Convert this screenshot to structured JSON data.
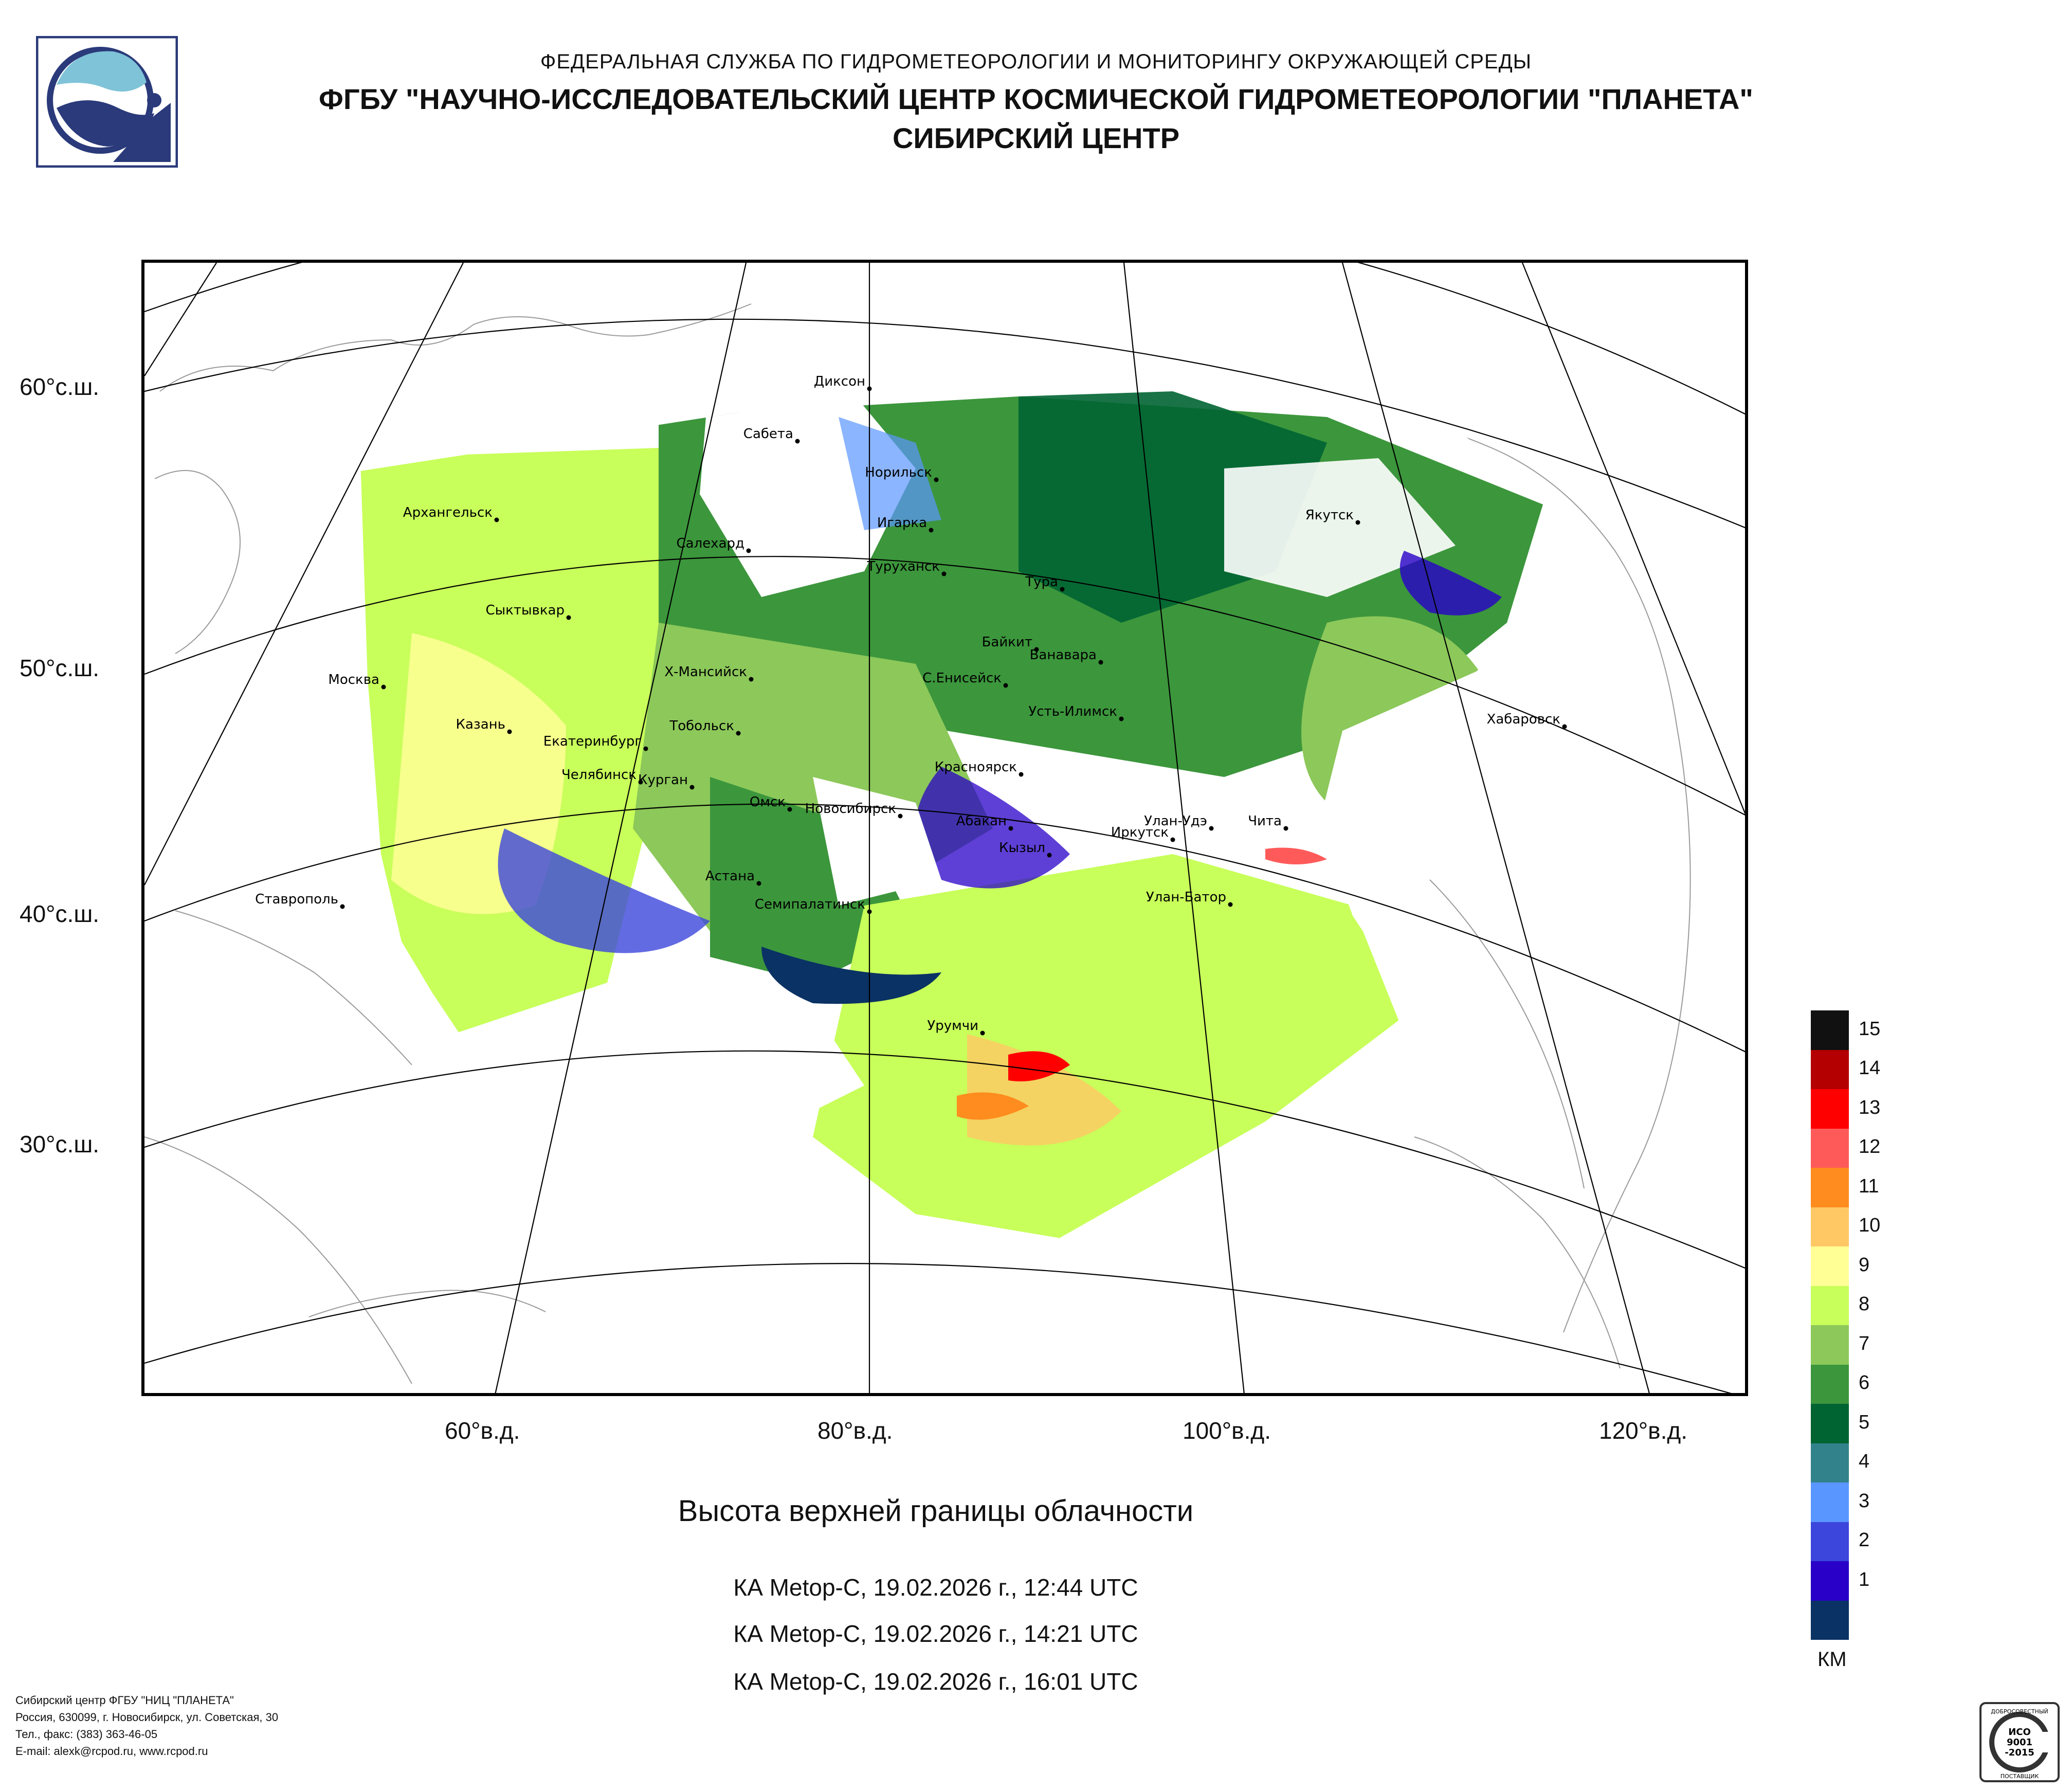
{
  "header": {
    "line1": "ФЕДЕРАЛЬНАЯ СЛУЖБА ПО ГИДРОМЕТЕОРОЛОГИИ И МОНИТОРИНГУ ОКРУЖАЮЩЕЙ СРЕДЫ",
    "line2": "ФГБУ \"НАУЧНО-ИССЛЕДОВАТЕЛЬСКИЙ ЦЕНТР КОСМИЧЕСКОЙ ГИДРОМЕТЕОРОЛОГИИ \"ПЛАНЕТА\"",
    "line3": "СИБИРСКИЙ ЦЕНТР"
  },
  "map": {
    "lat_labels": [
      "60°с.ш.",
      "50°с.ш.",
      "40°с.ш.",
      "30°с.ш."
    ],
    "lon_labels": [
      "60°в.д.",
      "80°в.д.",
      "100°в.д.",
      "120°в.д."
    ],
    "cities": [
      "Диксон",
      "Сабета",
      "Норильск",
      "Архангельск",
      "Игарка",
      "Якутск",
      "Салехард",
      "Туруханск",
      "Тура",
      "Сыктывкар",
      "Байкит",
      "Ванавара",
      "Москва",
      "Х-Мансийск",
      "С.Енисейск",
      "Усть-Илимск",
      "Хабаровск",
      "Казань",
      "Тобольск",
      "Екатеринбург",
      "Красноярск",
      "Челябинск",
      "Курган",
      "Омск",
      "Чита",
      "Новосибирск",
      "Абакан",
      "Улан-Удэ",
      "Иркутск",
      "Кызыл",
      "Астана",
      "Ставрополь",
      "Улан-Батор",
      "Семипалатинск",
      "Урумчи"
    ]
  },
  "title": "Высота верхней границы облачности",
  "passes": [
    "КА Metop-C, 19.02.2026 г., 12:44 UTC",
    "КА Metop-C, 19.02.2026 г., 14:21 UTC",
    "КА Metop-C, 19.02.2026 г., 16:01 UTC"
  ],
  "legend": {
    "unit": "КМ",
    "levels": [
      "15",
      "14",
      "13",
      "12",
      "11",
      "10",
      "9",
      "8",
      "7",
      "6",
      "5",
      "4",
      "3",
      "2",
      "1"
    ],
    "colors": [
      "#111111",
      "#b40000",
      "#ff0000",
      "#ff5a5a",
      "#ff8c1e",
      "#ffc864",
      "#ffff96",
      "#c8ff5a",
      "#8cc85a",
      "#3c963c",
      "#006432",
      "#32828c",
      "#5a96ff",
      "#3c46dc",
      "#2800c8",
      "#0a3264"
    ]
  },
  "footer": {
    "line1": "Сибирский центр ФГБУ \"НИЦ \"ПЛАНЕТА\"",
    "line2": "Россия, 630099, г. Новосибирск, ул. Советская, 30",
    "line3": "Тел., факс: (383) 363-46-05",
    "line4": "E-mail: alexk@rcpod.ru, www.rcpod.ru"
  },
  "iso_badge": {
    "top": "ДОБРОСОВЕСТНЫЙ",
    "mid1": "ИСО",
    "mid2": "9001",
    "mid3": "-2015",
    "bottom": "ПОСТАВЩИК"
  }
}
